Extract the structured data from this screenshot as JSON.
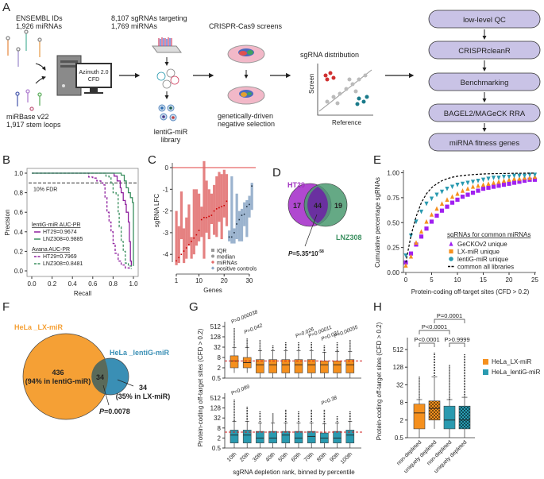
{
  "panel_labels": {
    "A": "A",
    "B": "B",
    "C": "C",
    "D": "D",
    "E": "E",
    "F": "F",
    "G": "G",
    "H": "H"
  },
  "panelA": {
    "ensembl_line1": "ENSEMBL IDs",
    "ensembl_line2": "1,926 miRNAs",
    "mirbase_line1": "miRBase v22",
    "mirbase_line2": "1,917 stem loops",
    "azimuth_line1": "Azimuth 2.0",
    "azimuth_line2": "CFD",
    "sgrna_line1": "8,107 sgRNAs targeting",
    "sgrna_line2": "1,769 miRNAs",
    "library_line1": "lentiG-miR",
    "library_line2": "library",
    "screens": "CRISPR-Cas9 screens",
    "selection_line1": "genetically-driven",
    "selection_line2": "negative selection",
    "distribution": "sgRNA distribution",
    "screen_axis": "Screen",
    "reference_axis": "Reference",
    "pipeline": [
      "low-level QC",
      "CRISPRcleanR",
      "Benchmarking",
      "BAGEL2/MAGeCK RRA",
      "miRNA fitness genes"
    ]
  },
  "colors": {
    "purple": "#8e1f9e",
    "green": "#3a8f5f",
    "red": "#e06b6b",
    "blue": "#8aa6c6",
    "orange": "#f5901e",
    "teal": "#2a9ab0",
    "violet": "#a020f0",
    "pipeline": "#c9c3e6"
  },
  "chart_data": [
    {
      "id": "B",
      "type": "line",
      "xlabel": "Recall",
      "ylabel": "Precision",
      "xlim": [
        0,
        1
      ],
      "ylim": [
        0,
        1
      ],
      "xticks": [
        "0.0",
        "0.2",
        "0.4",
        "0.6",
        "0.8",
        "1.0"
      ],
      "yticks": [
        "0.0",
        "0.2",
        "0.4",
        "0.6",
        "0.8",
        "1.0"
      ],
      "fdr_label": "10% FDR",
      "fdr_value": 0.9,
      "legend_title1": "lentiG-miR AUC-PR",
      "legend_title2": "Avana AUC-PR",
      "series": [
        {
          "name": "HT29=0.9674",
          "library": "lentiG-miR",
          "style": "solid",
          "color": "#8e1f9e",
          "points": [
            [
              0,
              1
            ],
            [
              0.8,
              1
            ],
            [
              0.81,
              0.97
            ],
            [
              0.84,
              0.92
            ],
            [
              0.87,
              0.85
            ],
            [
              0.88,
              0.8
            ],
            [
              0.9,
              0.72
            ],
            [
              0.92,
              0.68
            ],
            [
              0.93,
              0.6
            ],
            [
              0.95,
              0.5
            ],
            [
              0.96,
              0.3
            ],
            [
              0.97,
              0.1
            ],
            [
              0.98,
              0.05
            ]
          ]
        },
        {
          "name": "LNZ308=0.9885",
          "library": "lentiG-miR",
          "style": "solid",
          "color": "#3a8f5f",
          "points": [
            [
              0,
              1
            ],
            [
              0.85,
              1
            ],
            [
              0.88,
              0.98
            ],
            [
              0.91,
              0.92
            ],
            [
              0.93,
              0.85
            ],
            [
              0.95,
              0.8
            ],
            [
              0.97,
              0.75
            ],
            [
              0.99,
              0.7
            ],
            [
              1.0,
              0.15
            ],
            [
              1.0,
              0.05
            ]
          ]
        },
        {
          "name": "HT29=0.7969",
          "library": "Avana",
          "style": "dashed",
          "color": "#8e1f9e",
          "points": [
            [
              0,
              1
            ],
            [
              0.55,
              1
            ],
            [
              0.56,
              0.96
            ],
            [
              0.6,
              0.95
            ],
            [
              0.64,
              0.92
            ],
            [
              0.68,
              0.9
            ],
            [
              0.7,
              0.88
            ],
            [
              0.72,
              0.75
            ],
            [
              0.74,
              0.6
            ],
            [
              0.76,
              0.5
            ],
            [
              0.78,
              0.4
            ],
            [
              0.8,
              0.28
            ],
            [
              0.82,
              0.18
            ],
            [
              0.85,
              0.1
            ],
            [
              0.88,
              0.06
            ],
            [
              0.92,
              0.03
            ],
            [
              0.96,
              0.02
            ]
          ]
        },
        {
          "name": "LNZ308=0.8481",
          "library": "Avana",
          "style": "dashed",
          "color": "#3a8f5f",
          "points": [
            [
              0,
              1
            ],
            [
              0.72,
              1
            ],
            [
              0.73,
              0.97
            ],
            [
              0.76,
              0.96
            ],
            [
              0.78,
              0.9
            ],
            [
              0.8,
              0.8
            ],
            [
              0.83,
              0.78
            ],
            [
              0.85,
              0.6
            ],
            [
              0.86,
              0.45
            ],
            [
              0.88,
              0.3
            ],
            [
              0.9,
              0.2
            ],
            [
              0.92,
              0.08
            ],
            [
              0.95,
              0.05
            ],
            [
              0.98,
              0.02
            ]
          ]
        }
      ]
    },
    {
      "id": "C",
      "type": "box",
      "xlabel": "Genes",
      "ylabel": "sgRNA LFC",
      "xlim": [
        0,
        31
      ],
      "ylim": [
        -4.5,
        0.3
      ],
      "xticks": [
        "1",
        "10",
        "20",
        "30"
      ],
      "yticks": [
        "0",
        "-1",
        "-2",
        "-3",
        "-4"
      ],
      "legend": [
        "IQR",
        "median",
        "miRNAs",
        "positive controls"
      ],
      "series": [
        {
          "name": "miRNAs",
          "color": "#e06b6b",
          "median": [
            -4.3,
            -4.15,
            -4.0,
            -3.85,
            -3.7,
            -3.55,
            -3.4,
            -3.25,
            -3.1,
            -2.9,
            -2.4,
            -2.3,
            -2.3,
            -2.25,
            -2.2,
            -2.0,
            -1.9,
            -1.85,
            -1.8,
            -1.75,
            -1.55
          ],
          "q1": [
            -4.5,
            -4.4,
            -3.3,
            -4.4,
            -4.2,
            -3.6,
            -4.2,
            -4.0,
            -3.6,
            -3.4,
            -3.2,
            -4.2,
            -3.0,
            -3.3,
            -2.6,
            -3.1,
            -3.2,
            -2.5,
            -3.3,
            -2.3,
            -2.7
          ],
          "q3": [
            -2.0,
            -2.7,
            -1.1,
            -2.8,
            -2.3,
            -1.7,
            -3.2,
            -1.0,
            -1.0,
            -1.2,
            -1.8,
            0.3,
            -0.6,
            -1.0,
            -1.2,
            -0.8,
            -0.4,
            -0.2,
            -0.3,
            -0.1,
            -0.3
          ]
        },
        {
          "name": "positive controls",
          "color": "#8aa6c6",
          "median": [
            -3.2,
            -3.2,
            -3.0,
            -2.6,
            -2.4,
            -2.2,
            -2.15,
            -1.8,
            -1.7,
            -0.85
          ],
          "q1": [
            -3.4,
            -3.5,
            -3.5,
            -3.3,
            -3.4,
            -3.4,
            -2.7,
            -3.2,
            -2.3,
            -1.95
          ],
          "q3": [
            -2.9,
            -0.4,
            -2.8,
            -1.2,
            -2.0,
            -1.9,
            -1.6,
            -1.5,
            -1.3,
            -0.7
          ]
        }
      ]
    },
    {
      "id": "D",
      "type": "venn",
      "sets": [
        {
          "name": "HT29",
          "only": 17,
          "color": "#a030c0"
        },
        {
          "name": "LNZ308",
          "only": 19,
          "color": "#3a8f5f"
        }
      ],
      "overlap": 44,
      "p_value_prefix": "P",
      "p_value_rest": "=5.35*10",
      "p_value_exp": "-58"
    },
    {
      "id": "E",
      "type": "scatter",
      "xlabel": "Protein-coding off-target sites (CFD > 0.2)",
      "ylabel": "Cumulative percentage sgRNAs",
      "xlim": [
        0,
        25
      ],
      "ylim": [
        0,
        1
      ],
      "xticks": [
        "0",
        "5",
        "10",
        "15",
        "20",
        "25"
      ],
      "yticks": [
        "0.00",
        "0.25",
        "0.50",
        "0.75",
        "1.00"
      ],
      "legend_title": "sgRNAs for common miRNAs",
      "x": [
        0,
        1,
        2,
        3,
        4,
        5,
        6,
        7,
        8,
        9,
        10,
        11,
        12,
        13,
        14,
        15,
        16,
        17,
        18,
        19,
        20,
        21,
        22,
        23,
        24,
        25
      ],
      "series": [
        {
          "name": "GeCKOv2 unique",
          "marker": "square",
          "color": "#a020f0",
          "values": [
            0.1,
            0.19,
            0.28,
            0.36,
            0.44,
            0.51,
            0.57,
            0.62,
            0.66,
            0.7,
            0.73,
            0.76,
            0.78,
            0.8,
            0.82,
            0.84,
            0.85,
            0.86,
            0.87,
            0.88,
            0.89,
            0.9,
            0.91,
            0.92,
            0.93,
            0.93
          ]
        },
        {
          "name": "LX-miR unique",
          "marker": "triangle-up",
          "color": "#f5901e",
          "values": [
            0.07,
            0.16,
            0.3,
            0.41,
            0.51,
            0.58,
            0.64,
            0.69,
            0.73,
            0.76,
            0.79,
            0.82,
            0.84,
            0.86,
            0.87,
            0.88,
            0.89,
            0.9,
            0.91,
            0.92,
            0.93,
            0.94,
            0.94,
            0.95,
            0.95,
            0.96
          ]
        },
        {
          "name": "lentiG-miR unique",
          "marker": "triangle-down",
          "color": "#2a9ab0",
          "values": [
            0.17,
            0.37,
            0.51,
            0.61,
            0.69,
            0.74,
            0.78,
            0.81,
            0.84,
            0.86,
            0.88,
            0.89,
            0.9,
            0.91,
            0.92,
            0.93,
            0.94,
            0.95,
            0.95,
            0.96,
            0.96,
            0.97,
            0.97,
            0.97,
            0.98,
            0.98
          ]
        },
        {
          "name": "common all libraries",
          "marker": "dashed-line",
          "color": "#000000",
          "values": [
            0.1,
            0.37,
            0.56,
            0.7,
            0.79,
            0.85,
            0.89,
            0.92,
            0.94,
            0.955,
            0.965,
            0.972,
            0.978,
            0.982,
            0.985,
            0.988,
            0.99,
            0.991,
            0.992,
            0.993,
            0.994,
            0.995,
            0.995,
            0.996,
            0.996,
            0.997
          ]
        }
      ]
    },
    {
      "id": "F",
      "type": "venn",
      "sets": [
        {
          "name": "HeLa _LX-miR",
          "only": 436,
          "note": "(94% in lentiG-miR)",
          "color": "#f5a035"
        },
        {
          "name": "HeLa _lentiG-miR",
          "only": 34,
          "note": "(35% in LX-miR)",
          "color": "#3a8fb5"
        }
      ],
      "overlap": 34,
      "p_value_prefix": "P",
      "p_value_rest": "=0.0078"
    },
    {
      "id": "G",
      "type": "box",
      "xlabel": "sgRNA depletion rank, binned by percentile",
      "ylabel": "Protein-coding off-target sites (CFD > 0.2)",
      "yscale": "log2",
      "ylim": [
        0.5,
        512
      ],
      "yticks": [
        "512",
        "128",
        "32",
        "8",
        "2",
        "0.5"
      ],
      "categories": [
        "10th",
        "20th",
        "30th",
        "40th",
        "50th",
        "60th",
        "70th",
        "80th",
        "90th",
        "100th"
      ],
      "series": [
        {
          "name": "HeLa_LX-miR",
          "color": "#f5901e",
          "reference_line": 5,
          "q1": [
            2,
            2,
            1,
            1,
            1,
            1,
            1,
            1,
            1,
            1
          ],
          "median": [
            5,
            4,
            3,
            3,
            3,
            3,
            3,
            3,
            3,
            3
          ],
          "q3": [
            10,
            8,
            6,
            6,
            6,
            6,
            6,
            5,
            5,
            6
          ],
          "whisker_high": [
            30,
            30,
            20,
            20,
            20,
            20,
            20,
            16,
            18,
            18
          ],
          "whisker_low": [
            1,
            1,
            0.5,
            0.5,
            0.5,
            0.5,
            0.5,
            0.5,
            0.5,
            0.5
          ],
          "max": [
            400,
            100,
            80,
            40,
            60,
            60,
            60,
            40,
            60,
            80
          ],
          "p_values": [
            "P=0.000038",
            "P=0.042",
            "",
            "",
            "",
            "P=0.026",
            "P=0.00011",
            "P=0.031",
            "P=0.00055",
            ""
          ]
        },
        {
          "name": "HeLa_lentiG-miR",
          "color": "#2a9ab0",
          "reference_line": 4.5,
          "q1": [
            1,
            1,
            1,
            1,
            1,
            1,
            1,
            1,
            1,
            1
          ],
          "median": [
            3,
            3,
            2,
            2,
            3,
            2,
            2.5,
            2,
            2,
            3
          ],
          "q3": [
            6,
            6,
            5,
            5,
            5,
            5,
            5,
            4,
            5,
            6
          ],
          "whisker_high": [
            20,
            20,
            16,
            16,
            16,
            16,
            16,
            14,
            16,
            20
          ],
          "whisker_low": [
            0.5,
            0.5,
            0.5,
            0.5,
            0.5,
            0.5,
            0.5,
            0.5,
            0.5,
            0.5
          ],
          "max": [
            400,
            150,
            80,
            60,
            100,
            80,
            100,
            100,
            40,
            80
          ],
          "p_values": [
            "P=0.089",
            "",
            "",
            "",
            "",
            "",
            "",
            "P=0.38",
            "",
            ""
          ]
        }
      ]
    },
    {
      "id": "H",
      "type": "box",
      "ylabel": "Protein-coding off-target sites (CFD > 0.2)",
      "yscale": "log2",
      "ylim": [
        0.5,
        512
      ],
      "yticks": [
        "512",
        "128",
        "32",
        "8",
        "2",
        "0.5"
      ],
      "categories": [
        "non-depleted",
        "uniquely depleted",
        "non-depleted",
        "uniquely depleted"
      ],
      "boxes": [
        {
          "series": "HeLa_LX-miR",
          "color": "#f5901e",
          "pattern": "none",
          "q1": 1,
          "median": 3.5,
          "q3": 7,
          "whisker_low": 0.5,
          "whisker_high": 10,
          "max": 60
        },
        {
          "series": "HeLa_LX-miR",
          "color": "#f5901e",
          "pattern": "checker",
          "q1": 2,
          "median": 5,
          "q3": 9,
          "whisker_low": 1,
          "whisker_high": 60,
          "max": 400
        },
        {
          "series": "HeLa_lentiG-miR",
          "color": "#2a9ab0",
          "pattern": "none",
          "q1": 1,
          "median": 2,
          "q3": 6,
          "whisker_low": 0.5,
          "whisker_high": 10,
          "max": 150
        },
        {
          "series": "HeLa_lentiG-miR",
          "color": "#2a9ab0",
          "pattern": "checker",
          "q1": 1,
          "median": 2,
          "q3": 6,
          "whisker_low": 0.5,
          "whisker_high": 12,
          "max": 350
        }
      ],
      "comparisons": [
        {
          "label": "P<0.0001",
          "pair": [
            1,
            2
          ]
        },
        {
          "label": "P>0.9999",
          "pair": [
            3,
            4
          ]
        },
        {
          "label": "P<0.0001",
          "pair": [
            1,
            3
          ]
        },
        {
          "label": "P=0.0001",
          "pair": [
            2,
            4
          ]
        }
      ],
      "legend": [
        "HeLa_LX-miR",
        "HeLa_lentiG-miR"
      ]
    }
  ]
}
